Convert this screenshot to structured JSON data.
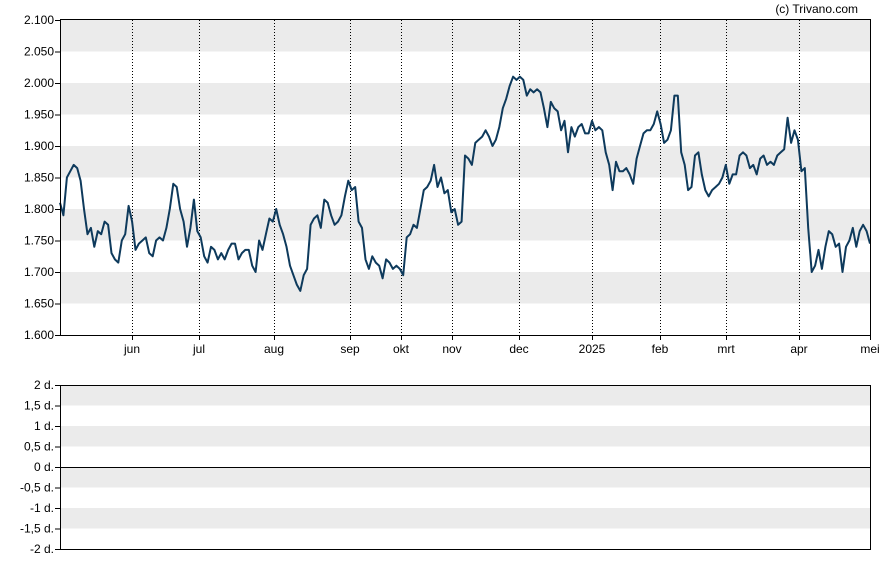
{
  "credit": "(c) Trivano.com",
  "colors": {
    "line": "#0e3a5c",
    "band": "#ebebeb",
    "axis": "#000000",
    "grid": "#000000"
  },
  "chart_data": [
    {
      "type": "line",
      "title": "",
      "ylim": [
        1.6,
        2.1
      ],
      "y_ticks": [
        "2.100",
        "2.050",
        "2.000",
        "1.950",
        "1.900",
        "1.850",
        "1.800",
        "1.750",
        "1.700",
        "1.650",
        "1.600"
      ],
      "x_ticks": [
        "jun",
        "jul",
        "aug",
        "sep",
        "okt",
        "nov",
        "dec",
        "2025",
        "feb",
        "mrt",
        "apr",
        "mei"
      ],
      "grid": "vertical dotted at month starts, alternating horizontal bands",
      "series": [
        {
          "values": [
            1.81,
            1.79,
            1.85,
            1.86,
            1.87,
            1.865,
            1.845,
            1.8,
            1.76,
            1.77,
            1.74,
            1.765,
            1.76,
            1.78,
            1.775,
            1.73,
            1.72,
            1.715,
            1.75,
            1.76,
            1.805,
            1.78,
            1.735,
            1.745,
            1.75,
            1.755,
            1.73,
            1.725,
            1.75,
            1.755,
            1.75,
            1.77,
            1.8,
            1.84,
            1.835,
            1.8,
            1.78,
            1.74,
            1.77,
            1.815,
            1.765,
            1.755,
            1.725,
            1.715,
            1.74,
            1.735,
            1.72,
            1.73,
            1.72,
            1.735,
            1.745,
            1.745,
            1.72,
            1.73,
            1.735,
            1.735,
            1.71,
            1.7,
            1.75,
            1.735,
            1.76,
            1.785,
            1.78,
            1.8,
            1.775,
            1.76,
            1.74,
            1.71,
            1.695,
            1.68,
            1.67,
            1.695,
            1.705,
            1.775,
            1.785,
            1.79,
            1.77,
            1.815,
            1.81,
            1.79,
            1.775,
            1.78,
            1.79,
            1.82,
            1.845,
            1.83,
            1.835,
            1.78,
            1.77,
            1.72,
            1.705,
            1.725,
            1.715,
            1.71,
            1.69,
            1.72,
            1.715,
            1.705,
            1.71,
            1.705,
            1.695,
            1.755,
            1.76,
            1.775,
            1.77,
            1.8,
            1.83,
            1.835,
            1.845,
            1.87,
            1.835,
            1.85,
            1.825,
            1.83,
            1.795,
            1.8,
            1.775,
            1.78,
            1.885,
            1.88,
            1.87,
            1.905,
            1.91,
            1.915,
            1.925,
            1.915,
            1.9,
            1.91,
            1.93,
            1.96,
            1.975,
            1.995,
            2.01,
            2.005,
            2.01,
            2.005,
            1.98,
            1.99,
            1.985,
            1.99,
            1.985,
            1.96,
            1.93,
            1.97,
            1.96,
            1.955,
            1.925,
            1.94,
            1.89,
            1.93,
            1.915,
            1.93,
            1.935,
            1.92,
            1.92,
            1.94,
            1.925,
            1.93,
            1.925,
            1.89,
            1.87,
            1.83,
            1.875,
            1.86,
            1.86,
            1.865,
            1.855,
            1.84,
            1.88,
            1.9,
            1.92,
            1.925,
            1.925,
            1.935,
            1.955,
            1.935,
            1.905,
            1.91,
            1.925,
            1.98,
            1.98,
            1.89,
            1.87,
            1.83,
            1.835,
            1.885,
            1.89,
            1.855,
            1.83,
            1.82,
            1.83,
            1.835,
            1.84,
            1.85,
            1.87,
            1.84,
            1.855,
            1.855,
            1.885,
            1.89,
            1.885,
            1.865,
            1.87,
            1.855,
            1.88,
            1.885,
            1.87,
            1.875,
            1.87,
            1.885,
            1.89,
            1.895,
            1.945,
            1.905,
            1.925,
            1.91,
            1.86,
            1.865,
            1.77,
            1.7,
            1.71,
            1.735,
            1.705,
            1.74,
            1.765,
            1.76,
            1.74,
            1.745,
            1.7,
            1.74,
            1.75,
            1.77,
            1.74,
            1.765,
            1.775,
            1.765,
            1.745
          ]
        }
      ]
    },
    {
      "type": "line",
      "title": "",
      "ylim": [
        -2,
        2
      ],
      "y_ticks": [
        "2 d.",
        "1,5 d.",
        "1 d.",
        "0,5 d.",
        "0 d.",
        "-0,5 d.",
        "-1 d.",
        "-1,5 d.",
        "-2 d."
      ],
      "grid": "alternating horizontal bands, zero line",
      "series": []
    }
  ]
}
